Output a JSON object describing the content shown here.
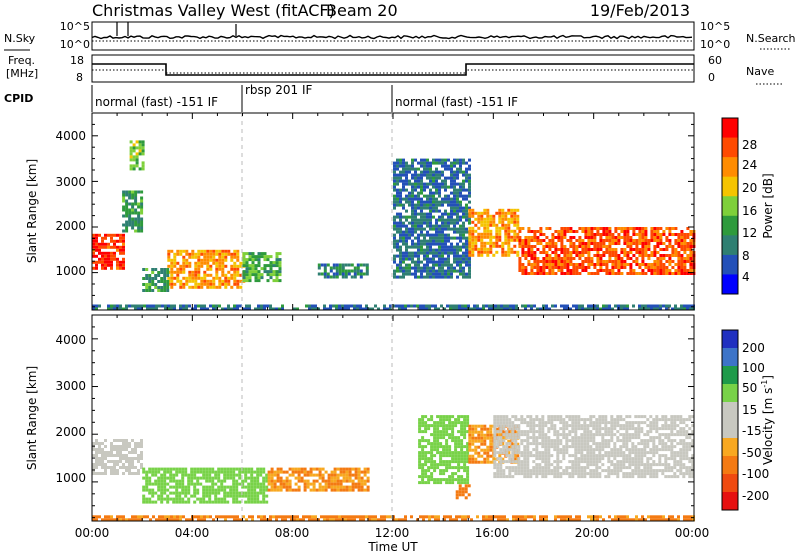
{
  "header": {
    "station": "Christmas Valley West (fitACF)",
    "beam": "Beam 20",
    "date": "19/Feb/2013"
  },
  "aux_panels": {
    "nsky_label": "N.Sky",
    "nsky_ticks": [
      "10^5",
      "10^0"
    ],
    "nsearch_label": "N.Search",
    "nsearch_ticks": [
      "10^5",
      "10^0"
    ],
    "freq_label_1": "Freq.",
    "freq_label_2": "[MHz]",
    "freq_ticks": [
      "18",
      "8"
    ],
    "nave_label": "Nave",
    "nave_ticks": [
      "60",
      "0"
    ],
    "cpid_label": "CPID",
    "cpid_segments": [
      {
        "label": "normal (fast) -151 IF",
        "start_h": 0,
        "end_h": 6
      },
      {
        "label": "rbsp 201 IF",
        "start_h": 6,
        "end_h": 12
      },
      {
        "label": "normal (fast) -151 IF",
        "start_h": 12,
        "end_h": 24
      }
    ]
  },
  "power_colorbar": {
    "title": "Power [dB]",
    "ticks": [
      "28",
      "24",
      "20",
      "16",
      "12",
      "8",
      "4"
    ],
    "colors": [
      "#ff0000",
      "#ff4a00",
      "#ff8c00",
      "#f5c400",
      "#7ed03a",
      "#2e9a3c",
      "#2f7f72",
      "#2350b8",
      "#0000ff"
    ]
  },
  "velocity_colorbar": {
    "title_main": "Velocity [m s",
    "title_sup": "-1",
    "title_end": "]",
    "ticks": [
      "200",
      "100",
      "50",
      "15",
      "-15",
      "-50",
      "-100",
      "-200"
    ],
    "colors": [
      "#2030c0",
      "#3d74c8",
      "#1f9a4a",
      "#78d248",
      "#c8c8c0",
      "#c8c8c0",
      "#f8a820",
      "#f47a12",
      "#ef4a10",
      "#e61010"
    ]
  },
  "x_axis": {
    "title": "Time UT",
    "ticks": [
      "00:00",
      "04:00",
      "08:00",
      "12:00",
      "16:00",
      "20:00",
      "00:00"
    ]
  },
  "y_axis": {
    "title": "Slant Range [km]",
    "ticks": [
      "1000",
      "2000",
      "3000",
      "4000"
    ]
  },
  "chart_data": [
    {
      "type": "heatmap",
      "title": "Power [dB]",
      "xlabel": "Time UT",
      "ylabel": "Slant Range [km]",
      "xlim": [
        0,
        24
      ],
      "ylim": [
        180,
        4500
      ],
      "zlim": [
        0,
        30
      ],
      "regions": [
        {
          "t0": 0.0,
          "t1": 1.2,
          "r0": 1100,
          "r1": 1850,
          "level": 28
        },
        {
          "t0": 1.2,
          "t1": 2.0,
          "r0": 1900,
          "r1": 2800,
          "level": 10
        },
        {
          "t0": 1.5,
          "t1": 2.0,
          "r0": 3300,
          "r1": 3900,
          "level": 14
        },
        {
          "t0": 3.0,
          "t1": 6.0,
          "r0": 700,
          "r1": 1500,
          "level": 22
        },
        {
          "t0": 2.0,
          "t1": 3.0,
          "r0": 600,
          "r1": 1100,
          "level": 10
        },
        {
          "t0": 6.0,
          "t1": 7.5,
          "r0": 850,
          "r1": 1450,
          "level": 12
        },
        {
          "t0": 9.0,
          "t1": 11.0,
          "r0": 900,
          "r1": 1200,
          "level": 8
        },
        {
          "t0": 12.0,
          "t1": 15.0,
          "r0": 900,
          "r1": 3500,
          "level": 6
        },
        {
          "t0": 15.0,
          "t1": 17.0,
          "r0": 1400,
          "r1": 2400,
          "level": 22
        },
        {
          "t0": 17.0,
          "t1": 24.0,
          "r0": 1000,
          "r1": 2000,
          "level": 26
        },
        {
          "t0": 0.0,
          "t1": 24.0,
          "r0": 180,
          "r1": 300,
          "level": 6
        }
      ]
    },
    {
      "type": "heatmap",
      "title": "Velocity [m s-1]",
      "xlabel": "Time UT",
      "ylabel": "Slant Range [km]",
      "xlim": [
        0,
        24
      ],
      "ylim": [
        180,
        4500
      ],
      "zlim": [
        -200,
        200
      ],
      "regions": [
        {
          "t0": 0.0,
          "t1": 2.0,
          "r0": 1200,
          "r1": 1900,
          "velocity": 0
        },
        {
          "t0": 2.0,
          "t1": 7.0,
          "r0": 600,
          "r1": 1300,
          "velocity": 30
        },
        {
          "t0": 7.0,
          "t1": 11.0,
          "r0": 800,
          "r1": 1300,
          "velocity": -50
        },
        {
          "t0": 13.0,
          "t1": 15.0,
          "r0": 1000,
          "r1": 2400,
          "velocity": 30
        },
        {
          "t0": 14.5,
          "t1": 15.0,
          "r0": 650,
          "r1": 950,
          "velocity": -70
        },
        {
          "t0": 15.0,
          "t1": 17.0,
          "r0": 1400,
          "r1": 2200,
          "velocity": -50
        },
        {
          "t0": 16.0,
          "t1": 24.0,
          "r0": 1100,
          "r1": 2400,
          "velocity": 0
        },
        {
          "t0": 0.0,
          "t1": 24.0,
          "r0": 180,
          "r1": 300,
          "velocity": -60
        }
      ]
    }
  ]
}
